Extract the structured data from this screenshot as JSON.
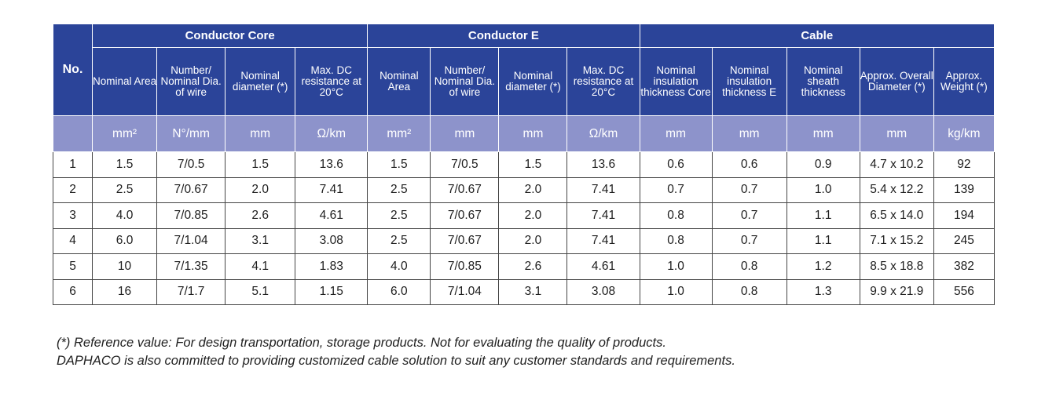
{
  "groups": {
    "no": "No.",
    "conductor_core": "Conductor Core",
    "conductor_e": "Conductor E",
    "cable": "Cable"
  },
  "subheaders": [
    "Nominal Area",
    "Number/ Nominal Dia. of wire",
    "Nominal diameter (*)",
    "Max. DC resistance at 20°C",
    "Nominal Area",
    "Number/ Nominal Dia. of wire",
    "Nominal diameter (*)",
    "Max. DC resistance at 20°C",
    "Nominal insulation thickness Core",
    "Nominal insulation thickness E",
    "Nominal sheath thickness",
    "Approx. Overall Diameter (*)",
    "Approx. Weight (*)"
  ],
  "units": [
    "mm²",
    "N°/mm",
    "mm",
    "Ω/km",
    "mm²",
    "mm",
    "mm",
    "Ω/km",
    "mm",
    "mm",
    "mm",
    "mm",
    "kg/km"
  ],
  "rows": [
    [
      "1",
      "1.5",
      "7/0.5",
      "1.5",
      "13.6",
      "1.5",
      "7/0.5",
      "1.5",
      "13.6",
      "0.6",
      "0.6",
      "0.9",
      "4.7 x 10.2",
      "92"
    ],
    [
      "2",
      "2.5",
      "7/0.67",
      "2.0",
      "7.41",
      "2.5",
      "7/0.67",
      "2.0",
      "7.41",
      "0.7",
      "0.7",
      "1.0",
      "5.4 x 12.2",
      "139"
    ],
    [
      "3",
      "4.0",
      "7/0.85",
      "2.6",
      "4.61",
      "2.5",
      "7/0.67",
      "2.0",
      "7.41",
      "0.8",
      "0.7",
      "1.1",
      "6.5 x 14.0",
      "194"
    ],
    [
      "4",
      "6.0",
      "7/1.04",
      "3.1",
      "3.08",
      "2.5",
      "7/0.67",
      "2.0",
      "7.41",
      "0.8",
      "0.7",
      "1.1",
      "7.1 x 15.2",
      "245"
    ],
    [
      "5",
      "10",
      "7/1.35",
      "4.1",
      "1.83",
      "4.0",
      "7/0.85",
      "2.6",
      "4.61",
      "1.0",
      "0.8",
      "1.2",
      "8.5 x 18.8",
      "382"
    ],
    [
      "6",
      "16",
      "7/1.7",
      "5.1",
      "1.15",
      "6.0",
      "7/1.04",
      "3.1",
      "3.08",
      "1.0",
      "0.8",
      "1.3",
      "9.9 x 21.9",
      "556"
    ]
  ],
  "footnotes": {
    "line1": "(*) Reference value: For design transportation, storage products. Not for evaluating the quality of products.",
    "line2": "DAPHACO is also committed to providing customized cable solution to suit any customer standards and requirements."
  },
  "colors": {
    "header_bg": "#2b4499",
    "unit_row_bg": "#8d93cb"
  }
}
